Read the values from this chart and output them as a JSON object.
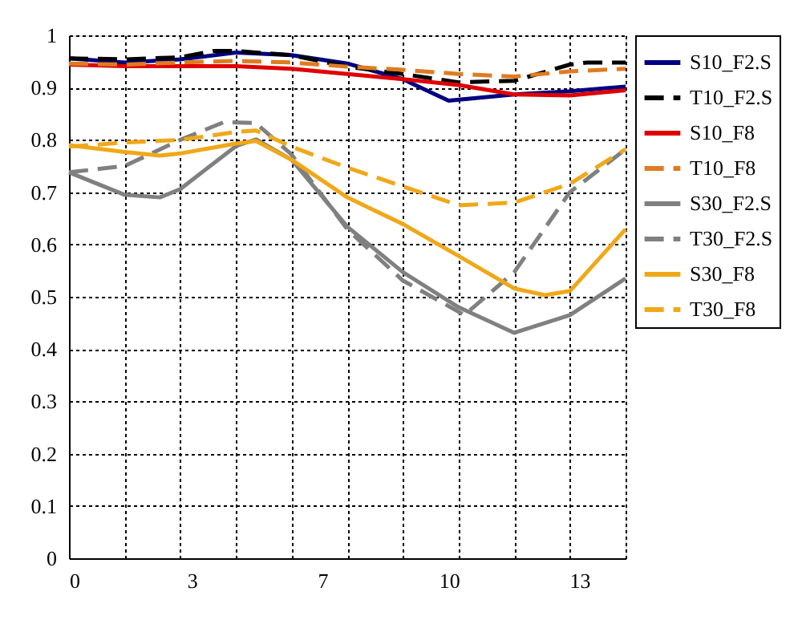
{
  "chart_data": {
    "type": "line",
    "xlim": [
      0,
      14.5
    ],
    "xticks": [
      {
        "value": 0,
        "label": "0"
      },
      {
        "value": 1.45,
        "label": null
      },
      {
        "value": 2.9,
        "label": null
      },
      {
        "value": 3.2,
        "label": "3"
      },
      {
        "value": 4.35,
        "label": null
      },
      {
        "value": 5.8,
        "label": null
      },
      {
        "value": 6.6,
        "label": "7"
      },
      {
        "value": 7.25,
        "label": null
      },
      {
        "value": 8.7,
        "label": null
      },
      {
        "value": 9.9,
        "label": "10"
      },
      {
        "value": 10.15,
        "label": null
      },
      {
        "value": 11.6,
        "label": null
      },
      {
        "value": 13.05,
        "label": null
      },
      {
        "value": 13.3,
        "label": "13"
      },
      {
        "value": 14.5,
        "label": null
      }
    ],
    "ylim": [
      0,
      1
    ],
    "yticks": [
      0,
      0.1,
      0.2,
      0.3,
      0.4,
      0.5,
      0.6,
      0.7,
      0.8,
      0.9,
      1
    ],
    "grid": true,
    "legend": "top right",
    "marker": "none",
    "series": [
      {
        "name": "S10_F2.S",
        "color": "#000080",
        "line_style": "solid",
        "x": [
          0,
          1.45,
          2.9,
          4.35,
          5.8,
          7.25,
          8.7,
          9.89,
          11.6,
          13.05,
          14.5
        ],
        "values": [
          0.956,
          0.948,
          0.954,
          0.967,
          0.962,
          0.946,
          0.916,
          0.875,
          0.887,
          0.893,
          0.902
        ]
      },
      {
        "name": "T10_F2.S",
        "color": "#000000",
        "line_style": "dashed",
        "x": [
          0,
          1.45,
          2.9,
          3.76,
          4.35,
          5.8,
          7.25,
          8.7,
          10.15,
          11.6,
          13.05,
          13.5,
          14.5
        ],
        "values": [
          0.956,
          0.954,
          0.958,
          0.97,
          0.97,
          0.962,
          0.94,
          0.926,
          0.91,
          0.913,
          0.944,
          0.948,
          0.948
        ]
      },
      {
        "name": "S10_F8",
        "color": "#e00000",
        "line_style": "solid",
        "x": [
          0,
          1.45,
          2.9,
          4.35,
          5.8,
          7.25,
          8.7,
          10.15,
          11.6,
          13.05,
          14.5
        ],
        "values": [
          0.944,
          0.941,
          0.941,
          0.941,
          0.936,
          0.926,
          0.916,
          0.905,
          0.887,
          0.885,
          0.895
        ]
      },
      {
        "name": "T10_F8",
        "color": "#e07b20",
        "line_style": "dashed",
        "x": [
          0,
          1.45,
          2.9,
          4.35,
          5.8,
          7.25,
          8.7,
          10.15,
          11.6,
          13.05,
          14.5
        ],
        "values": [
          0.946,
          0.944,
          0.948,
          0.951,
          0.948,
          0.94,
          0.934,
          0.926,
          0.921,
          0.931,
          0.936
        ]
      },
      {
        "name": "S30_F2.S",
        "color": "#808080",
        "line_style": "solid",
        "x": [
          0,
          1.45,
          2.37,
          2.9,
          4.35,
          4.87,
          5.8,
          7.25,
          8.7,
          10.15,
          11.6,
          13.05,
          14.5
        ],
        "values": [
          0.738,
          0.695,
          0.69,
          0.706,
          0.788,
          0.801,
          0.762,
          0.634,
          0.547,
          0.48,
          0.431,
          0.465,
          0.535
        ]
      },
      {
        "name": "T30_F2.S",
        "color": "#808080",
        "line_style": "dashed",
        "x": [
          0,
          1.45,
          2.9,
          4.04,
          4.87,
          5.8,
          7.25,
          8.7,
          10.3,
          11.6,
          13.05,
          14.5
        ],
        "values": [
          0.738,
          0.75,
          0.8,
          0.834,
          0.832,
          0.772,
          0.629,
          0.531,
          0.465,
          0.547,
          0.7,
          0.782
        ]
      },
      {
        "name": "S30_F8",
        "color": "#f0a818",
        "line_style": "solid",
        "x": [
          0,
          1.45,
          2.37,
          2.9,
          4.35,
          4.87,
          5.8,
          7.25,
          8.7,
          10.15,
          11.6,
          12.4,
          13.05,
          14.5
        ],
        "values": [
          0.79,
          0.777,
          0.77,
          0.774,
          0.793,
          0.798,
          0.762,
          0.69,
          0.639,
          0.578,
          0.516,
          0.503,
          0.511,
          0.629
        ]
      },
      {
        "name": "T30_F8",
        "color": "#f0a818",
        "line_style": "dashed",
        "x": [
          0,
          1.45,
          2.9,
          4.35,
          4.87,
          5.8,
          7.25,
          8.7,
          10.15,
          11.6,
          13.05,
          14.5
        ],
        "values": [
          0.787,
          0.795,
          0.8,
          0.815,
          0.818,
          0.787,
          0.747,
          0.711,
          0.675,
          0.68,
          0.716,
          0.782
        ]
      }
    ]
  }
}
